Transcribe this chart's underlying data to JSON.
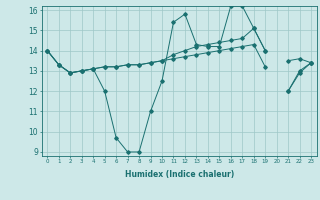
{
  "x_values": [
    0,
    1,
    2,
    3,
    4,
    5,
    6,
    7,
    8,
    9,
    10,
    11,
    12,
    13,
    14,
    15,
    16,
    17,
    18,
    19,
    20,
    21,
    22,
    23
  ],
  "line1": [
    14.0,
    13.3,
    12.9,
    13.0,
    13.1,
    12.0,
    9.7,
    9.0,
    9.0,
    11.0,
    12.5,
    15.4,
    15.8,
    14.3,
    14.2,
    14.2,
    16.2,
    16.2,
    15.1,
    14.0,
    null,
    12.0,
    12.9,
    13.4
  ],
  "line2": [
    14.0,
    13.3,
    12.9,
    13.0,
    13.1,
    13.2,
    13.2,
    13.3,
    13.3,
    13.4,
    13.5,
    13.6,
    13.7,
    13.8,
    13.9,
    14.0,
    14.1,
    14.2,
    14.3,
    13.2,
    null,
    13.5,
    13.6,
    13.4
  ],
  "line3": [
    14.0,
    13.3,
    12.9,
    13.0,
    13.1,
    13.2,
    13.2,
    13.3,
    13.3,
    13.4,
    13.5,
    13.8,
    14.0,
    14.2,
    14.3,
    14.4,
    14.5,
    14.6,
    15.1,
    14.0,
    null,
    12.0,
    13.0,
    13.4
  ],
  "bg_color": "#cde8e8",
  "grid_color": "#9ec8c8",
  "line_color": "#1a7070",
  "xlabel": "Humidex (Indice chaleur)",
  "ylim": [
    9,
    16
  ],
  "xlim": [
    -0.5,
    23.5
  ],
  "yticks": [
    9,
    10,
    11,
    12,
    13,
    14,
    15,
    16
  ],
  "xticks": [
    0,
    1,
    2,
    3,
    4,
    5,
    6,
    7,
    8,
    9,
    10,
    11,
    12,
    13,
    14,
    15,
    16,
    17,
    18,
    19,
    20,
    21,
    22,
    23
  ]
}
